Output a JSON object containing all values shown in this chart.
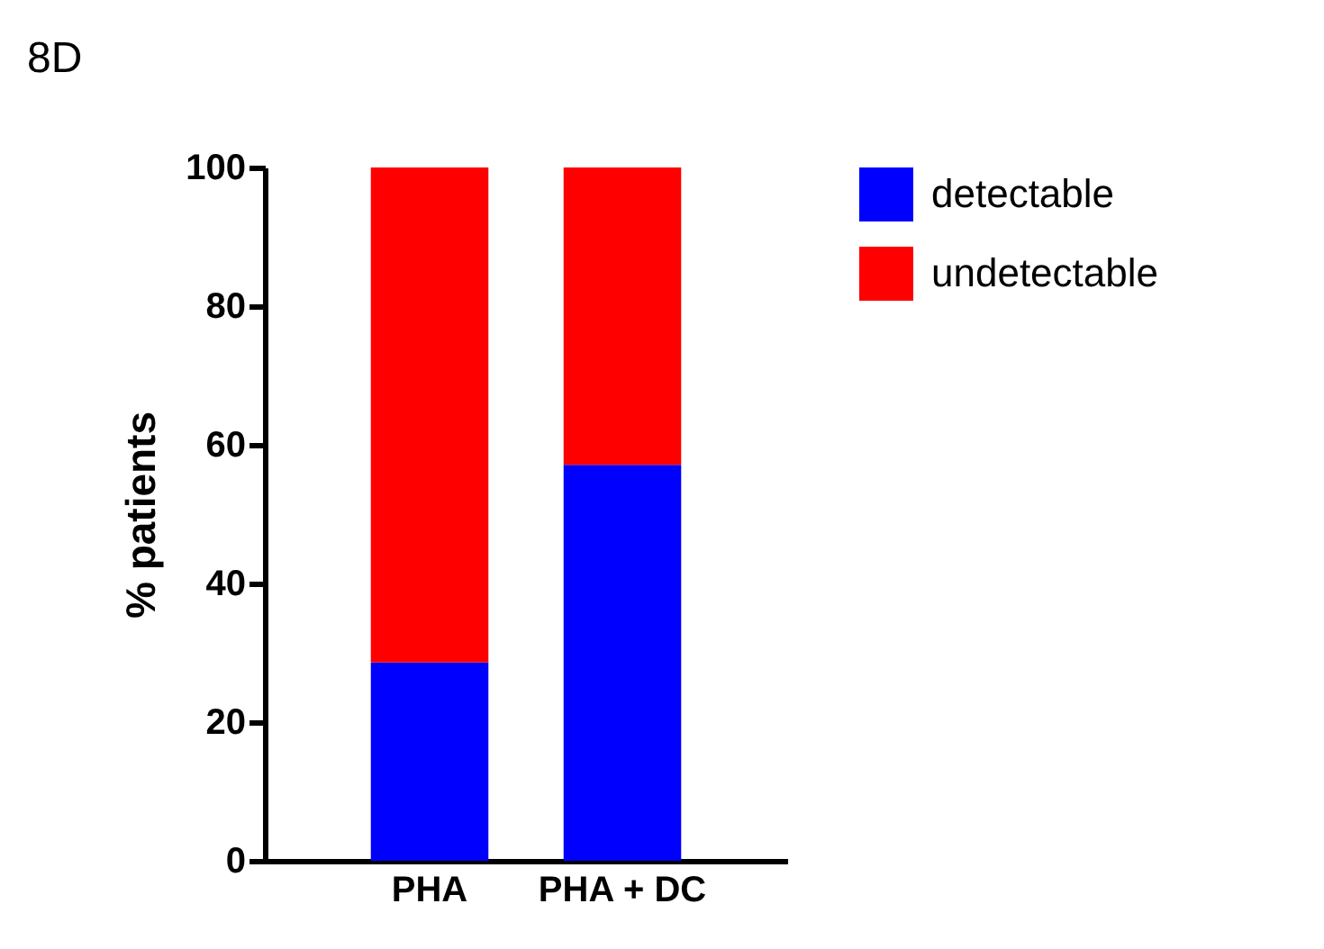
{
  "chart_data": {
    "type": "bar",
    "title": "8D",
    "ylabel": "% patients",
    "categories": [
      "PHA",
      "PHA + DC"
    ],
    "stacked": true,
    "series": [
      {
        "name": "detectable",
        "color": "#0000ff",
        "values": [
          28.6,
          57.1
        ]
      },
      {
        "name": "undetectable",
        "color": "#ff0000",
        "values": [
          71.4,
          42.9
        ]
      }
    ],
    "ylim": [
      0,
      100
    ],
    "yticks": [
      0,
      20,
      40,
      60,
      80,
      100
    ],
    "grid": false,
    "legend": "top right"
  }
}
